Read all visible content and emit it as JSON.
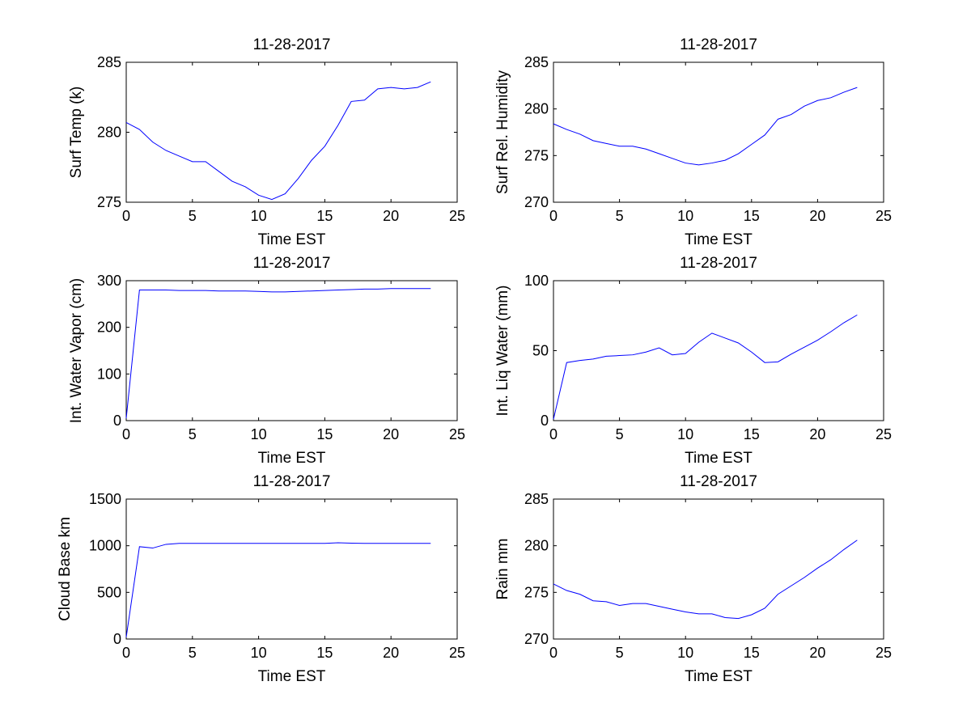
{
  "figure": {
    "background": "#ffffff",
    "line_color": "#0000ff",
    "axes_color": "#000000"
  },
  "chart_data": [
    {
      "type": "line",
      "title": "11-28-2017",
      "xlabel": "Time EST",
      "ylabel": "Surf Temp (k)",
      "xlim": [
        0,
        25
      ],
      "ylim": [
        275,
        285
      ],
      "xticks": [
        0,
        5,
        10,
        15,
        20,
        25
      ],
      "yticks": [
        275,
        280,
        285
      ],
      "grid": false,
      "series": [
        {
          "x": [
            0,
            1,
            2,
            3,
            4,
            5,
            6,
            7,
            8,
            9,
            10,
            11,
            12,
            13,
            14,
            15,
            16,
            17,
            18,
            19,
            20,
            21,
            22,
            23
          ],
          "y": [
            280.7,
            280.2,
            279.3,
            278.7,
            278.3,
            277.9,
            277.9,
            277.2,
            276.5,
            276.1,
            275.5,
            275.2,
            275.6,
            276.7,
            278.0,
            279.0,
            280.5,
            282.2,
            282.3,
            283.1,
            283.2,
            283.1,
            283.2,
            283.6
          ]
        }
      ]
    },
    {
      "type": "line",
      "title": "11-28-2017",
      "xlabel": "Time EST",
      "ylabel": "Surf Rel. Humidity",
      "xlim": [
        0,
        25
      ],
      "ylim": [
        270,
        285
      ],
      "xticks": [
        0,
        5,
        10,
        15,
        20,
        25
      ],
      "yticks": [
        270,
        275,
        280,
        285
      ],
      "grid": false,
      "series": [
        {
          "x": [
            0,
            1,
            2,
            3,
            4,
            5,
            6,
            7,
            8,
            9,
            10,
            11,
            12,
            13,
            14,
            15,
            16,
            17,
            18,
            19,
            20,
            21,
            22,
            23
          ],
          "y": [
            278.4,
            277.8,
            277.3,
            276.6,
            276.3,
            276.0,
            276.0,
            275.7,
            275.2,
            274.7,
            274.2,
            274.0,
            274.2,
            274.5,
            275.2,
            276.2,
            277.2,
            278.9,
            279.4,
            280.3,
            280.9,
            281.2,
            281.8,
            282.3
          ]
        }
      ]
    },
    {
      "type": "line",
      "title": "11-28-2017",
      "xlabel": "Time EST",
      "ylabel": "Int. Water Vapor (cm)",
      "xlim": [
        0,
        25
      ],
      "ylim": [
        0,
        300
      ],
      "xticks": [
        0,
        5,
        10,
        15,
        20,
        25
      ],
      "yticks": [
        0,
        100,
        200,
        300
      ],
      "grid": false,
      "series": [
        {
          "x": [
            0,
            1,
            2,
            3,
            4,
            5,
            6,
            7,
            8,
            9,
            10,
            11,
            12,
            13,
            14,
            15,
            16,
            17,
            18,
            19,
            20,
            21,
            22,
            23
          ],
          "y": [
            5,
            280,
            280,
            280,
            279,
            279,
            279,
            278,
            278,
            278,
            277,
            276,
            276,
            277,
            278,
            279,
            280,
            281,
            282,
            282,
            283,
            283,
            283,
            283
          ]
        }
      ]
    },
    {
      "type": "line",
      "title": "11-28-2017",
      "xlabel": "Time EST",
      "ylabel": "Int. Liq Water (mm)",
      "xlim": [
        0,
        25
      ],
      "ylim": [
        0,
        100
      ],
      "xticks": [
        0,
        5,
        10,
        15,
        20,
        25
      ],
      "yticks": [
        0,
        50,
        100
      ],
      "grid": false,
      "series": [
        {
          "x": [
            0,
            1,
            2,
            3,
            4,
            5,
            6,
            7,
            8,
            9,
            10,
            11,
            12,
            13,
            14,
            15,
            16,
            17,
            18,
            19,
            20,
            21,
            22,
            23
          ],
          "y": [
            1,
            41.5,
            43,
            44,
            46,
            46.5,
            47,
            49,
            52,
            47,
            48,
            56,
            62.5,
            59,
            55.5,
            49,
            41.5,
            42,
            47.5,
            52.5,
            57.5,
            63.5,
            70,
            75.5
          ]
        }
      ]
    },
    {
      "type": "line",
      "title": "11-28-2017",
      "xlabel": "Time EST",
      "ylabel": "Cloud Base km",
      "xlim": [
        0,
        25
      ],
      "ylim": [
        0,
        1500
      ],
      "xticks": [
        0,
        5,
        10,
        15,
        20,
        25
      ],
      "yticks": [
        0,
        500,
        1000,
        1500
      ],
      "grid": false,
      "series": [
        {
          "x": [
            0,
            1,
            2,
            3,
            4,
            5,
            6,
            7,
            8,
            9,
            10,
            11,
            12,
            13,
            14,
            15,
            16,
            17,
            18,
            19,
            20,
            21,
            22,
            23
          ],
          "y": [
            20,
            990,
            975,
            1015,
            1025,
            1025,
            1025,
            1025,
            1025,
            1025,
            1025,
            1025,
            1025,
            1025,
            1025,
            1025,
            1032,
            1028,
            1025,
            1025,
            1025,
            1025,
            1025,
            1025
          ]
        }
      ]
    },
    {
      "type": "line",
      "title": "11-28-2017",
      "xlabel": "Time EST",
      "ylabel": "Rain mm",
      "xlim": [
        0,
        25
      ],
      "ylim": [
        270,
        285
      ],
      "xticks": [
        0,
        5,
        10,
        15,
        20,
        25
      ],
      "yticks": [
        270,
        275,
        280,
        285
      ],
      "grid": false,
      "series": [
        {
          "x": [
            0,
            1,
            2,
            3,
            4,
            5,
            6,
            7,
            8,
            9,
            10,
            11,
            12,
            13,
            14,
            15,
            16,
            17,
            18,
            19,
            20,
            21,
            22,
            23
          ],
          "y": [
            275.9,
            275.2,
            274.8,
            274.1,
            274.0,
            273.6,
            273.8,
            273.8,
            273.5,
            273.2,
            272.9,
            272.7,
            272.7,
            272.3,
            272.2,
            272.6,
            273.3,
            274.8,
            275.7,
            276.6,
            277.6,
            278.5,
            279.6,
            280.6
          ]
        }
      ]
    }
  ]
}
